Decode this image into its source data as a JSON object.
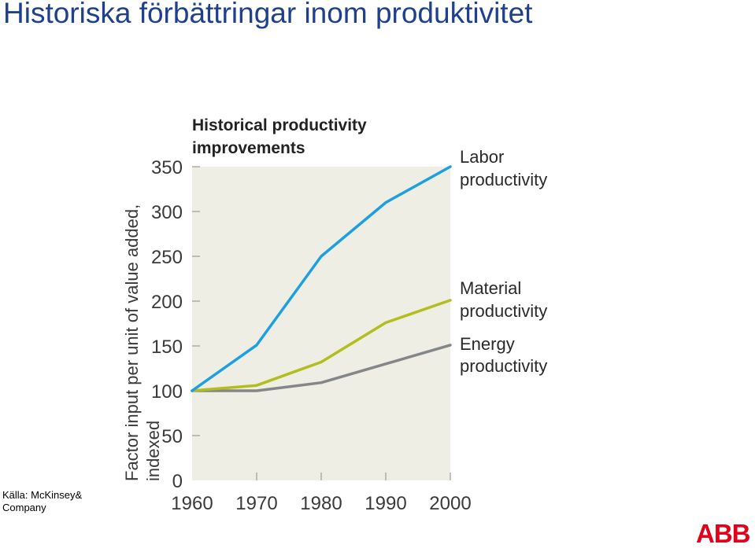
{
  "slide": {
    "title": "Historiska förbättringar inom produktivitet",
    "source_line1": "Källa: McKinsey&",
    "source_line2": "Company",
    "logo": "ABB"
  },
  "colors": {
    "plot_background": "#eeeee5",
    "labor": "#1e9fdf",
    "material": "#b2be1e",
    "energy": "#858688",
    "axis_text": "#3a3a3a",
    "title_blue": "#1f3f8f",
    "logo_red": "#e2001a"
  },
  "chart_data": {
    "type": "line",
    "title_line1": "Historical productivity",
    "title_line2": "improvements",
    "ylabel_line1": "Factor input per unit of value added,",
    "ylabel_line2": "indexed",
    "xlabel": "",
    "x": [
      1960,
      1970,
      1980,
      1990,
      2000
    ],
    "xlim": [
      1960,
      2000
    ],
    "ylim": [
      0,
      350
    ],
    "y_ticks": [
      0,
      50,
      100,
      150,
      200,
      250,
      300,
      350
    ],
    "x_ticks": [
      1960,
      1970,
      1980,
      1990,
      2000
    ],
    "grid": false,
    "legend": "right (inline labels at line ends)",
    "series": [
      {
        "key": "labor",
        "label_line1": "Labor",
        "label_line2": "productivity",
        "values": [
          100,
          151,
          250,
          310,
          350
        ]
      },
      {
        "key": "material",
        "label_line1": "Material",
        "label_line2": "productivity",
        "values": [
          100,
          106,
          132,
          176,
          201
        ]
      },
      {
        "key": "energy",
        "label_line1": "Energy",
        "label_line2": "productivity",
        "values": [
          100,
          100,
          109,
          130,
          151
        ]
      }
    ]
  }
}
